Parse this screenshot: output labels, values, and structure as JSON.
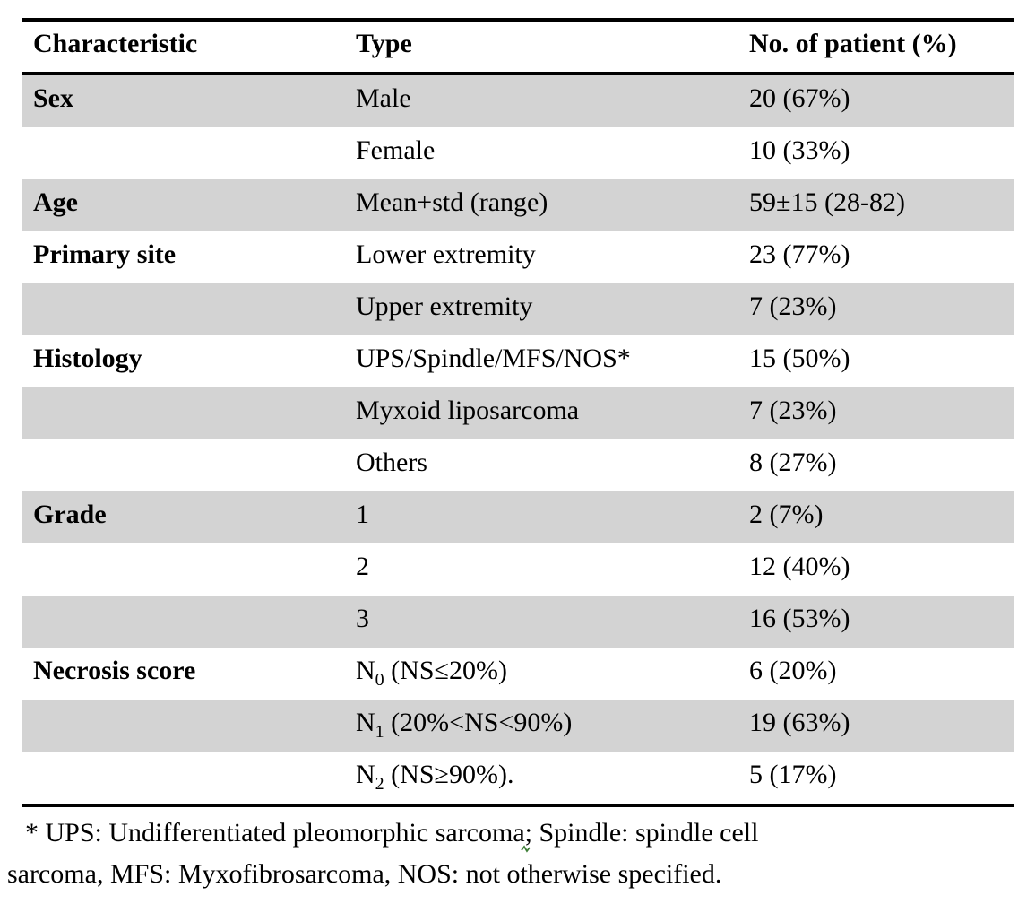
{
  "table": {
    "shade_color": "#d3d3d3",
    "header": {
      "characteristic": "Characteristic",
      "type": "Type",
      "count": "No. of patient (%)"
    },
    "rows": [
      {
        "characteristic": "Sex",
        "type": "Male",
        "count": "20 (67%)",
        "shaded": true
      },
      {
        "characteristic": "",
        "type": "Female",
        "count": "10 (33%)",
        "shaded": false
      },
      {
        "characteristic": "Age",
        "type": "Mean+std (range)",
        "count": "59±15 (28-82)",
        "shaded": true
      },
      {
        "characteristic": "Primary site",
        "type": "Lower extremity",
        "count": "23 (77%)",
        "shaded": false
      },
      {
        "characteristic": "",
        "type": "Upper extremity",
        "count": "7 (23%)",
        "shaded": true
      },
      {
        "characteristic": "Histology",
        "type": "UPS/Spindle/MFS/NOS*",
        "count": "15 (50%)",
        "shaded": false
      },
      {
        "characteristic": "",
        "type": "Myxoid liposarcoma",
        "count": "7 (23%)",
        "shaded": true
      },
      {
        "characteristic": "",
        "type": "Others",
        "count": "8 (27%)",
        "shaded": false
      },
      {
        "characteristic": "Grade",
        "type": "1",
        "count": "2 (7%)",
        "shaded": true
      },
      {
        "characteristic": "",
        "type": "2",
        "count": "12 (40%)",
        "shaded": false
      },
      {
        "characteristic": "",
        "type": "3",
        "count": "16 (53%)",
        "shaded": true
      },
      {
        "characteristic": "Necrosis score",
        "type": "N",
        "type_sub": "0",
        "type_rest": " (NS≤20%)",
        "count": "6 (20%)",
        "shaded": false
      },
      {
        "characteristic": "",
        "type": "N",
        "type_sub": "1",
        "type_rest": " (20%<NS<90%)",
        "count": "19 (63%)",
        "shaded": true
      },
      {
        "characteristic": "",
        "type": "N",
        "type_sub": "2",
        "type_rest": " (NS≥90%).",
        "count": "5 (17%)",
        "shaded": false
      }
    ]
  },
  "footnote": {
    "line1_before_mark": "* UPS: Undifferentiated pleomorphic sarcoma;",
    "line1_after_mark": " Spindle: spindle cell",
    "line2": "sarcoma, MFS: Myxofibrosarcoma, NOS: not otherwise specified.",
    "grammar_mark_color": "#3c7d35"
  }
}
